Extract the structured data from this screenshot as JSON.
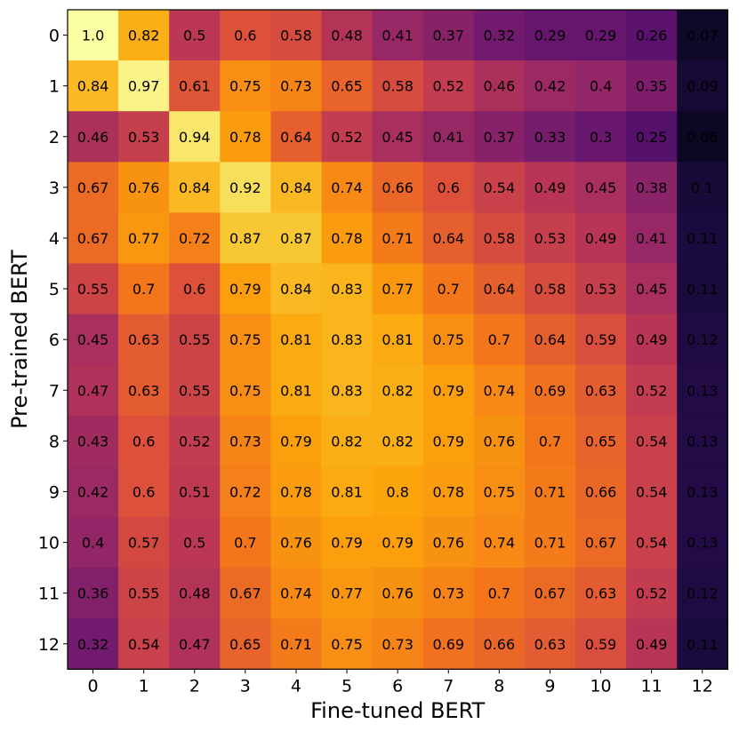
{
  "chart_data": {
    "type": "heatmap",
    "xlabel": "Fine-tuned BERT",
    "ylabel": "Pre-trained BERT",
    "x_ticks": [
      "0",
      "1",
      "2",
      "3",
      "4",
      "5",
      "6",
      "7",
      "8",
      "9",
      "10",
      "11",
      "12"
    ],
    "y_ticks": [
      "0",
      "1",
      "2",
      "3",
      "4",
      "5",
      "6",
      "7",
      "8",
      "9",
      "10",
      "11",
      "12"
    ],
    "colormap": "inferno",
    "value_range": [
      0,
      1
    ],
    "values": [
      [
        1.0,
        0.82,
        0.5,
        0.6,
        0.58,
        0.48,
        0.41,
        0.37,
        0.32,
        0.29,
        0.29,
        0.26,
        0.07
      ],
      [
        0.84,
        0.97,
        0.61,
        0.75,
        0.73,
        0.65,
        0.58,
        0.52,
        0.46,
        0.42,
        0.4,
        0.35,
        0.09
      ],
      [
        0.46,
        0.53,
        0.94,
        0.78,
        0.64,
        0.52,
        0.45,
        0.41,
        0.37,
        0.33,
        0.3,
        0.25,
        0.06
      ],
      [
        0.67,
        0.76,
        0.84,
        0.92,
        0.84,
        0.74,
        0.66,
        0.6,
        0.54,
        0.49,
        0.45,
        0.38,
        0.1
      ],
      [
        0.67,
        0.77,
        0.72,
        0.87,
        0.87,
        0.78,
        0.71,
        0.64,
        0.58,
        0.53,
        0.49,
        0.41,
        0.11
      ],
      [
        0.55,
        0.7,
        0.6,
        0.79,
        0.84,
        0.83,
        0.77,
        0.7,
        0.64,
        0.58,
        0.53,
        0.45,
        0.11
      ],
      [
        0.45,
        0.63,
        0.55,
        0.75,
        0.81,
        0.83,
        0.81,
        0.75,
        0.7,
        0.64,
        0.59,
        0.49,
        0.12
      ],
      [
        0.47,
        0.63,
        0.55,
        0.75,
        0.81,
        0.83,
        0.82,
        0.79,
        0.74,
        0.69,
        0.63,
        0.52,
        0.13
      ],
      [
        0.43,
        0.6,
        0.52,
        0.73,
        0.79,
        0.82,
        0.82,
        0.79,
        0.76,
        0.7,
        0.65,
        0.54,
        0.13
      ],
      [
        0.42,
        0.6,
        0.51,
        0.72,
        0.78,
        0.81,
        0.8,
        0.78,
        0.75,
        0.71,
        0.66,
        0.54,
        0.13
      ],
      [
        0.4,
        0.57,
        0.5,
        0.7,
        0.76,
        0.79,
        0.79,
        0.76,
        0.74,
        0.71,
        0.67,
        0.54,
        0.13
      ],
      [
        0.36,
        0.55,
        0.48,
        0.67,
        0.74,
        0.77,
        0.76,
        0.73,
        0.7,
        0.67,
        0.63,
        0.52,
        0.12
      ],
      [
        0.32,
        0.54,
        0.47,
        0.65,
        0.71,
        0.75,
        0.73,
        0.69,
        0.66,
        0.63,
        0.59,
        0.49,
        0.11
      ]
    ]
  }
}
